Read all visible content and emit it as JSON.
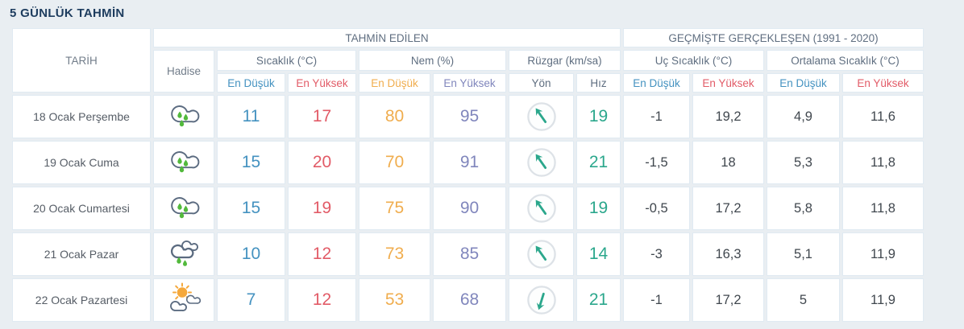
{
  "title": "5 GÜNLÜK TAHMİN",
  "table": {
    "header": {
      "tarih": "TARİH",
      "hadise": "Hadise",
      "tahmin_edilen": "TAHMİN EDİLEN",
      "gecmiste": "GEÇMİŞTE GERÇEKLEŞEN (1991 - 2020)",
      "sicaklik": "Sıcaklık (°C)",
      "nem": "Nem (%)",
      "ruzgar": "Rüzgar (km/sa)",
      "uc_sicaklik": "Uç Sıcaklık (°C)",
      "ortalama_sicaklik": "Ortalama Sıcaklık (°C)",
      "en_dusuk": "En Düşük",
      "en_yuksek": "En Yüksek",
      "yon": "Yön",
      "hiz": "Hız"
    },
    "rows": [
      {
        "date": "18 Ocak Perşembe",
        "condition": "rainy",
        "temp_min": 11,
        "temp_max": 17,
        "humidity_min": 80,
        "humidity_max": 95,
        "wind_dir": "NW",
        "wind_deg": -35,
        "wind_speed": 19,
        "extreme_min": "-1",
        "extreme_max": "19,2",
        "avg_min": "4,9",
        "avg_max": "11,6"
      },
      {
        "date": "19 Ocak Cuma",
        "condition": "rainy",
        "temp_min": 15,
        "temp_max": 20,
        "humidity_min": 70,
        "humidity_max": 91,
        "wind_dir": "NW",
        "wind_deg": -35,
        "wind_speed": 21,
        "extreme_min": "-1,5",
        "extreme_max": "18",
        "avg_min": "5,3",
        "avg_max": "11,8"
      },
      {
        "date": "20 Ocak Cumartesi",
        "condition": "rainy",
        "temp_min": 15,
        "temp_max": 19,
        "humidity_min": 75,
        "humidity_max": 90,
        "wind_dir": "NW",
        "wind_deg": -35,
        "wind_speed": 19,
        "extreme_min": "-0,5",
        "extreme_max": "17,2",
        "avg_min": "5,8",
        "avg_max": "11,8"
      },
      {
        "date": "21 Ocak Pazar",
        "condition": "showers",
        "temp_min": 10,
        "temp_max": 12,
        "humidity_min": 73,
        "humidity_max": 85,
        "wind_dir": "NW",
        "wind_deg": -35,
        "wind_speed": 14,
        "extreme_min": "-3",
        "extreme_max": "16,3",
        "avg_min": "5,1",
        "avg_max": "11,9"
      },
      {
        "date": "22 Ocak Pazartesi",
        "condition": "partly-sunny",
        "temp_min": 7,
        "temp_max": 12,
        "humidity_min": 53,
        "humidity_max": 68,
        "wind_dir": "S",
        "wind_deg": 197,
        "wind_speed": 21,
        "extreme_min": "-1",
        "extreme_max": "17,2",
        "avg_min": "5",
        "avg_max": "11,9"
      }
    ]
  },
  "colors": {
    "page_background": "#e9eef2",
    "cell_background": "#ffffff",
    "cell_border": "#e0eaf2",
    "title_navy": "#1d3c5e",
    "header_text": "#5f6e80",
    "min_blue": "#4492c0",
    "max_red": "#e25b67",
    "humidity_min_orange": "#f0ad4e",
    "humidity_max_purple": "#8086bc",
    "wind_teal": "#2ba78c",
    "historical_text": "#40474e",
    "rain_drop_green": "#52b93c",
    "cloud_outline": "#5b6b80",
    "sun_orange": "#f5a83b"
  }
}
